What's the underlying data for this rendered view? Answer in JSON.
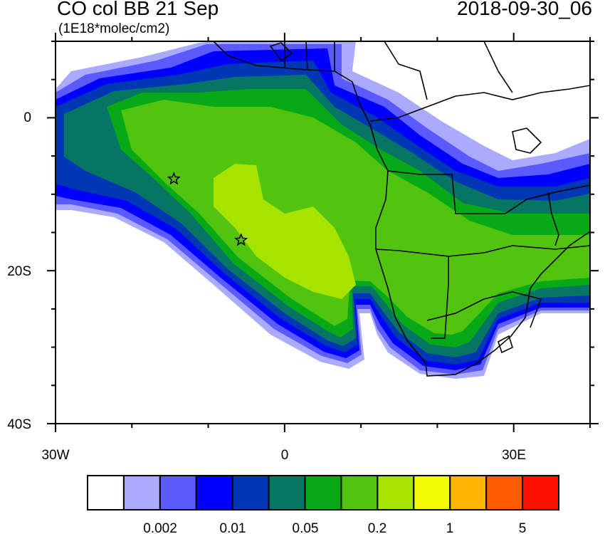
{
  "title": "CO col BB 21 Sep",
  "units": "(1E18*molec/cm2)",
  "datetime": "2018-09-30_06",
  "map": {
    "lon_range": [
      -30,
      40
    ],
    "lat_range": [
      -40,
      10
    ],
    "x_tick_labels": [
      "30W",
      "0",
      "30E"
    ],
    "y_tick_labels": [
      "0",
      "20S",
      "40S"
    ],
    "markers": [
      {
        "type": "star",
        "lon": -14.5,
        "lat": -8
      },
      {
        "type": "star",
        "lon": -5.7,
        "lat": -16
      }
    ]
  },
  "colorbar": {
    "colors": [
      "#ffffff",
      "#aaaaff",
      "#5a5aff",
      "#0000ff",
      "#0038b4",
      "#077563",
      "#07aa16",
      "#50c40e",
      "#a6e400",
      "#f4fa00",
      "#ffb400",
      "#ff5a00",
      "#ff1000"
    ],
    "labels": [
      "0.002",
      "0.01",
      "0.05",
      "0.2",
      "1",
      "5"
    ]
  }
}
